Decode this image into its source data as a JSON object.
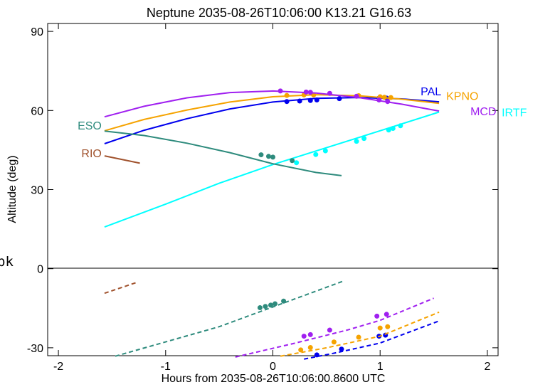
{
  "chart_data": {
    "type": "line",
    "title": "Neptune 2035-08-26T10:06:00  K13.21  G16.63",
    "xlabel": "Hours from 2035-08-26T10:06:00.8600 UTC",
    "ylabel": "Altitude (deg)",
    "xlim": [
      -2.1,
      2.1
    ],
    "ylim": [
      -33,
      93
    ],
    "xticks": [
      -2,
      -1,
      0,
      1,
      2
    ],
    "xtick_labels": [
      "-2",
      "-1",
      "0",
      "1",
      "2"
    ],
    "yticks": [
      90,
      60,
      30,
      0,
      -30
    ],
    "ytick_labels": [
      "90",
      "60",
      "30",
      "0",
      "-30"
    ],
    "zero_line": 0,
    "stray_text": "pk",
    "series": [
      {
        "name": "PAL",
        "color": "#0000ee",
        "altitude": {
          "x": [
            -1.57,
            -1.2,
            -0.8,
            -0.4,
            0,
            0.4,
            0.8,
            1.2,
            1.55
          ],
          "y": [
            47.4,
            52.5,
            56.9,
            60.6,
            63.2,
            64.6,
            64.9,
            64.4,
            63.3
          ]
        },
        "altitude_markers": {
          "x": [
            0.13,
            0.25,
            0.35,
            0.41,
            0.62,
            0.99,
            1.06
          ],
          "y": [
            63.4,
            63.6,
            63.8,
            64.0,
            64.5,
            64.7,
            64.7
          ]
        },
        "lower": {
          "x": [
            0.29,
            0.6,
            1.0,
            1.55
          ],
          "y": [
            -34.3,
            -31.8,
            -28.2,
            -19.8
          ]
        },
        "lower_markers": {
          "x": [
            0.41,
            0.64,
            0.99,
            1.05
          ],
          "y": [
            -32.7,
            -30.5,
            -25.6,
            -25.2
          ]
        }
      },
      {
        "name": "KPNO",
        "color": "#f5a300",
        "altitude": {
          "x": [
            -1.57,
            -1.2,
            -0.8,
            -0.4,
            0,
            0.4,
            0.8,
            1.2,
            1.55
          ],
          "y": [
            52.3,
            56.6,
            60.2,
            63.2,
            65.2,
            66.0,
            65.6,
            64.3,
            62.7
          ]
        },
        "altitude_markers": {
          "x": [
            0.13,
            0.29,
            0.38,
            0.8,
            1.0,
            1.04,
            1.1
          ],
          "y": [
            65.7,
            65.9,
            65.9,
            65.6,
            65.2,
            65.0,
            64.9
          ]
        },
        "lower": {
          "x": [
            0.07,
            0.5,
            1.0,
            1.55
          ],
          "y": [
            -33.2,
            -30.0,
            -25.6,
            -16.5
          ]
        },
        "lower_markers": {
          "x": [
            0.26,
            0.35,
            0.57,
            0.8,
            1.0,
            1.07
          ],
          "y": [
            -30.8,
            -29.9,
            -27.8,
            -26.0,
            -22.5,
            -22.0
          ]
        }
      },
      {
        "name": "MCD",
        "color": "#a020f0",
        "altitude": {
          "x": [
            -1.57,
            -1.2,
            -0.8,
            -0.4,
            0,
            0.4,
            0.8,
            1.2,
            1.55
          ],
          "y": [
            57.6,
            61.6,
            64.8,
            66.8,
            67.4,
            66.6,
            64.9,
            62.4,
            59.8
          ]
        },
        "altitude_markers": {
          "x": [
            0.07,
            0.31,
            0.35,
            0.53,
            0.78,
            0.99,
            1.07
          ],
          "y": [
            67.4,
            67.0,
            66.9,
            66.5,
            65.4,
            64.0,
            63.4
          ]
        },
        "lower": {
          "x": [
            -0.35,
            0.2,
            0.7,
            1.0,
            1.5
          ],
          "y": [
            -33.5,
            -28.3,
            -23.2,
            -19.6,
            -11.2
          ]
        },
        "lower_markers": {
          "x": [
            0.29,
            0.35,
            0.53,
            0.97,
            1.06
          ],
          "y": [
            -25.6,
            -25.0,
            -23.3,
            -18.0,
            -17.3
          ]
        }
      },
      {
        "name": "IRTF",
        "color": "#00ffff",
        "altitude": {
          "x": [
            -1.57,
            -1.0,
            -0.5,
            0,
            0.5,
            1.0,
            1.55
          ],
          "y": [
            15.8,
            24.5,
            32.4,
            39.5,
            45.9,
            52.3,
            59.4
          ]
        },
        "altitude_markers": {
          "x": [
            0.22,
            0.4,
            0.49,
            0.78,
            0.85,
            1.08,
            1.12,
            1.19
          ],
          "y": [
            40.2,
            43.3,
            44.7,
            48.3,
            49.4,
            52.6,
            53.2,
            54.2
          ]
        }
      },
      {
        "name": "ESO",
        "color": "#2e8b7d",
        "altitude": {
          "x": [
            -1.57,
            -1.2,
            -0.8,
            -0.4,
            0,
            0.4,
            0.64
          ],
          "y": [
            52.2,
            50.5,
            47.6,
            44.0,
            39.8,
            36.5,
            35.3
          ]
        },
        "altitude_markers": {
          "x": [
            -0.11,
            -0.04,
            0.0,
            0.18
          ],
          "y": [
            43.2,
            42.6,
            42.3,
            41.0
          ]
        },
        "lower": {
          "x": [
            -1.47,
            -0.5,
            0.65
          ],
          "y": [
            -33.2,
            -22.0,
            -4.8
          ]
        },
        "lower_markers": {
          "x": [
            -0.12,
            -0.07,
            -0.02,
            0.02,
            0.1
          ],
          "y": [
            -14.8,
            -14.3,
            -13.8,
            -13.3,
            -12.3
          ]
        }
      },
      {
        "name": "RIO",
        "color": "#a0522d",
        "altitude": {
          "x": [
            -1.57,
            -1.24
          ],
          "y": [
            42.8,
            40.0
          ]
        },
        "lower": {
          "x": [
            -1.57,
            -1.27
          ],
          "y": [
            -9.3,
            -5.2
          ]
        }
      }
    ]
  }
}
